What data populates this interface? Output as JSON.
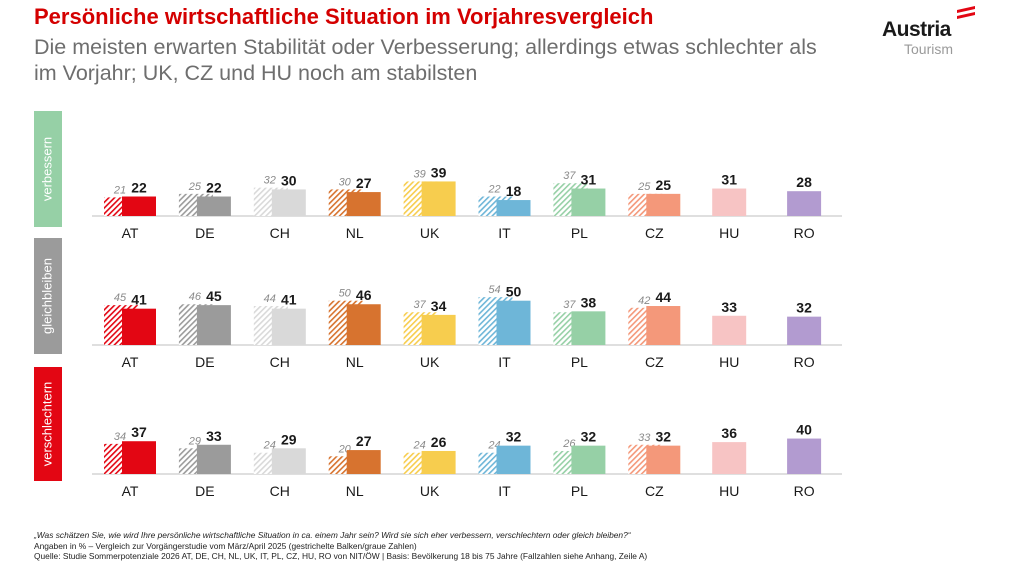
{
  "title": "Persönliche wirtschaftliche Situation im Vorjahresvergleich",
  "subtitle": "Die meisten erwarten Stabilität oder Verbesserung; allerdings etwas schlechter als im Vorjahr; UK, CZ und HU noch am stabilsten",
  "logo": {
    "word": "Austria",
    "sub": "Tourism",
    "stripe_color": "#e30613"
  },
  "colors": {
    "AT": "#e30613",
    "DE": "#9b9b9b",
    "CH": "#d9d9d9",
    "NL": "#d7732f",
    "UK": "#f7cd4e",
    "IT": "#6eb6d8",
    "PL": "#96d0a6",
    "CZ": "#f4987a",
    "HU": "#f7c4c4",
    "RO": "#b29bd0",
    "panel_verbessern": "#96d0a6",
    "panel_gleichbleiben": "#9b9b9b",
    "panel_verschlechtern": "#e30613"
  },
  "chart_data": {
    "type": "bar",
    "categories": [
      "AT",
      "DE",
      "CH",
      "NL",
      "UK",
      "IT",
      "PL",
      "CZ",
      "HU",
      "RO"
    ],
    "note": "Angaben in %",
    "panels": [
      {
        "label": "verbessern",
        "current": [
          22,
          22,
          30,
          27,
          39,
          18,
          31,
          25,
          31,
          28
        ],
        "previous": [
          21,
          25,
          32,
          30,
          39,
          22,
          37,
          25,
          null,
          null
        ]
      },
      {
        "label": "gleichbleiben",
        "current": [
          41,
          45,
          41,
          46,
          34,
          50,
          38,
          44,
          33,
          32
        ],
        "previous": [
          45,
          46,
          44,
          50,
          37,
          54,
          37,
          42,
          null,
          null
        ]
      },
      {
        "label": "verschlechtern",
        "current": [
          37,
          33,
          29,
          27,
          26,
          32,
          32,
          32,
          36,
          40
        ],
        "previous": [
          34,
          29,
          24,
          20,
          24,
          24,
          26,
          33,
          null,
          null
        ]
      }
    ]
  },
  "footnotes": {
    "question": "„Was schätzen Sie, wie wird Ihre persönliche wirtschaftliche Situation in ca. einem Jahr sein? Wird sie sich eher verbessern, verschlechtern oder gleich bleiben?“",
    "note": "Angaben in % – Vergleich zur Vorgängerstudie vom März/April 2025 (gestrichelte Balken/graue Zahlen)",
    "source": "Quelle: Studie Sommerpotenziale 2026 AT, DE, CH, NL, UK, IT, PL, CZ, HU, RO von NIT/ÖW | Basis: Bevölkerung 18 bis 75 Jahre (Fallzahlen siehe Anhang, Zeile A)"
  }
}
